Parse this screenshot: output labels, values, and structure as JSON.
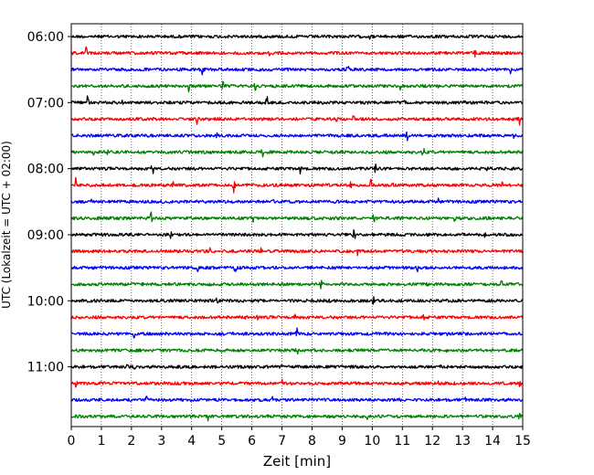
{
  "chart_data": {
    "type": "line",
    "title": "",
    "xlabel": "Zeit  [min]",
    "ylabel": "UTC (Lokalzeit = UTC + 02:00)",
    "xlim": [
      0,
      15
    ],
    "x_ticks": [
      0,
      1,
      2,
      3,
      4,
      5,
      6,
      7,
      8,
      9,
      10,
      11,
      12,
      13,
      14,
      15
    ],
    "x_tick_labels": [
      "0",
      "1",
      "2",
      "3",
      "4",
      "5",
      "6",
      "7",
      "8",
      "9",
      "10",
      "11",
      "12",
      "13",
      "14",
      "15"
    ],
    "y_tick_labels": [
      "06:00",
      "07:00",
      "08:00",
      "09:00",
      "10:00",
      "11:00"
    ],
    "rows_per_hour": 4,
    "minutes_per_row": 15,
    "grid": "vertical dotted at each minute",
    "trace_colors": [
      "#000000",
      "#ff0000",
      "#0000ff",
      "#008000"
    ],
    "rows": [
      {
        "time": "06:00",
        "color": "#000000",
        "events": [
          {
            "x": 9.9,
            "amp": 0.35
          }
        ]
      },
      {
        "time": "06:15",
        "color": "#ff0000",
        "events": [
          {
            "x": 0.5,
            "amp": 0.9
          },
          {
            "x": 6.6,
            "amp": 0.3
          },
          {
            "x": 13.4,
            "amp": 0.55
          }
        ]
      },
      {
        "time": "06:30",
        "color": "#0000ff",
        "events": [
          {
            "x": 4.35,
            "amp": 0.95
          },
          {
            "x": 9.2,
            "amp": 0.7
          },
          {
            "x": 14.6,
            "amp": 0.8
          }
        ]
      },
      {
        "time": "06:45",
        "color": "#008000",
        "events": [
          {
            "x": 3.9,
            "amp": 0.7
          },
          {
            "x": 5.05,
            "amp": 0.6
          },
          {
            "x": 6.1,
            "amp": 0.6
          },
          {
            "x": 10.9,
            "amp": 0.75
          },
          {
            "x": 12.2,
            "amp": 0.35
          }
        ]
      },
      {
        "time": "07:00",
        "color": "#000000",
        "events": [
          {
            "x": 0.55,
            "amp": 0.8
          },
          {
            "x": 1.7,
            "amp": 0.45
          },
          {
            "x": 6.5,
            "amp": 0.85
          },
          {
            "x": 11.1,
            "amp": 0.5
          },
          {
            "x": 13.1,
            "amp": 0.6
          }
        ]
      },
      {
        "time": "07:15",
        "color": "#ff0000",
        "events": [
          {
            "x": 4.2,
            "amp": 0.9
          },
          {
            "x": 8.8,
            "amp": 0.55
          },
          {
            "x": 9.4,
            "amp": 0.85
          },
          {
            "x": 14.9,
            "amp": 0.9
          }
        ]
      },
      {
        "time": "07:30",
        "color": "#0000ff",
        "events": [
          {
            "x": 4.85,
            "amp": 0.7
          },
          {
            "x": 11.15,
            "amp": 0.8
          },
          {
            "x": 14.7,
            "amp": 0.35
          }
        ]
      },
      {
        "time": "07:45",
        "color": "#008000",
        "events": [
          {
            "x": 0.75,
            "amp": 0.45
          },
          {
            "x": 1.2,
            "amp": 0.55
          },
          {
            "x": 6.35,
            "amp": 0.75
          },
          {
            "x": 11.7,
            "amp": 0.7
          }
        ]
      },
      {
        "time": "08:00",
        "color": "#000000",
        "events": [
          {
            "x": 2.7,
            "amp": 0.75
          },
          {
            "x": 7.6,
            "amp": 0.75
          },
          {
            "x": 10.1,
            "amp": 0.75
          },
          {
            "x": 13.8,
            "amp": 0.4
          }
        ]
      },
      {
        "time": "08:15",
        "color": "#ff0000",
        "events": [
          {
            "x": 0.15,
            "amp": 0.8
          },
          {
            "x": 3.4,
            "amp": 0.45
          },
          {
            "x": 5.4,
            "amp": 0.75
          },
          {
            "x": 9.3,
            "amp": 0.45
          },
          {
            "x": 9.95,
            "amp": 0.85
          },
          {
            "x": 10.7,
            "amp": 0.55
          },
          {
            "x": 14.3,
            "amp": 0.5
          }
        ]
      },
      {
        "time": "08:30",
        "color": "#0000ff",
        "events": [
          {
            "x": 0.65,
            "amp": 0.7
          },
          {
            "x": 6.75,
            "amp": 0.6
          },
          {
            "x": 12.2,
            "amp": 0.6
          }
        ]
      },
      {
        "time": "08:45",
        "color": "#008000",
        "events": [
          {
            "x": 2.65,
            "amp": 0.7
          },
          {
            "x": 6.05,
            "amp": 0.55
          },
          {
            "x": 10.05,
            "amp": 0.45
          },
          {
            "x": 12.75,
            "amp": 0.6
          }
        ]
      },
      {
        "time": "09:00",
        "color": "#000000",
        "events": [
          {
            "x": 3.3,
            "amp": 0.6
          },
          {
            "x": 9.4,
            "amp": 0.8
          },
          {
            "x": 13.75,
            "amp": 0.4
          }
        ]
      },
      {
        "time": "09:15",
        "color": "#ff0000",
        "events": [
          {
            "x": 4.6,
            "amp": 0.4
          },
          {
            "x": 6.3,
            "amp": 0.5
          },
          {
            "x": 9.5,
            "amp": 0.6
          },
          {
            "x": 13.0,
            "amp": 0.35
          }
        ]
      },
      {
        "time": "09:30",
        "color": "#0000ff",
        "events": [
          {
            "x": 4.2,
            "amp": 0.5
          },
          {
            "x": 5.45,
            "amp": 0.5
          },
          {
            "x": 11.5,
            "amp": 0.55
          }
        ]
      },
      {
        "time": "09:45",
        "color": "#008000",
        "events": [
          {
            "x": 8.3,
            "amp": 0.55
          },
          {
            "x": 11.8,
            "amp": 0.5
          },
          {
            "x": 14.3,
            "amp": 0.6
          }
        ]
      },
      {
        "time": "10:00",
        "color": "#000000",
        "events": [
          {
            "x": 4.85,
            "amp": 0.4
          },
          {
            "x": 8.6,
            "amp": 0.35
          },
          {
            "x": 10.05,
            "amp": 0.55
          }
        ]
      },
      {
        "time": "10:15",
        "color": "#ff0000",
        "events": [
          {
            "x": 5.75,
            "amp": 0.65
          },
          {
            "x": 6.2,
            "amp": 0.6
          },
          {
            "x": 7.45,
            "amp": 0.45
          },
          {
            "x": 11.7,
            "amp": 0.5
          }
        ]
      },
      {
        "time": "10:30",
        "color": "#0000ff",
        "events": [
          {
            "x": 2.1,
            "amp": 0.55
          },
          {
            "x": 7.5,
            "amp": 0.6
          },
          {
            "x": 12.5,
            "amp": 0.55
          }
        ]
      },
      {
        "time": "10:45",
        "color": "#008000",
        "events": [
          {
            "x": 7.5,
            "amp": 0.45
          },
          {
            "x": 8.1,
            "amp": 0.4
          },
          {
            "x": 12.5,
            "amp": 0.35
          }
        ]
      },
      {
        "time": "11:00",
        "color": "#000000",
        "events": [
          {
            "x": 1.85,
            "amp": 0.5
          },
          {
            "x": 2.1,
            "amp": 0.55
          },
          {
            "x": 7.0,
            "amp": 0.5
          },
          {
            "x": 12.3,
            "amp": 0.5
          }
        ]
      },
      {
        "time": "11:15",
        "color": "#ff0000",
        "events": [
          {
            "x": 0.15,
            "amp": 0.45
          },
          {
            "x": 2.0,
            "amp": 0.55
          },
          {
            "x": 7.0,
            "amp": 0.5
          },
          {
            "x": 12.2,
            "amp": 0.55
          },
          {
            "x": 14.9,
            "amp": 0.5
          }
        ]
      },
      {
        "time": "11:30",
        "color": "#0000ff",
        "events": [
          {
            "x": 2.5,
            "amp": 0.5
          },
          {
            "x": 6.7,
            "amp": 0.55
          },
          {
            "x": 8.75,
            "amp": 0.45
          },
          {
            "x": 13.1,
            "amp": 0.55
          }
        ]
      },
      {
        "time": "11:45",
        "color": "#008000",
        "events": [
          {
            "x": 4.55,
            "amp": 0.45
          },
          {
            "x": 9.85,
            "amp": 0.45
          },
          {
            "x": 14.9,
            "amp": 0.55
          }
        ]
      }
    ]
  }
}
